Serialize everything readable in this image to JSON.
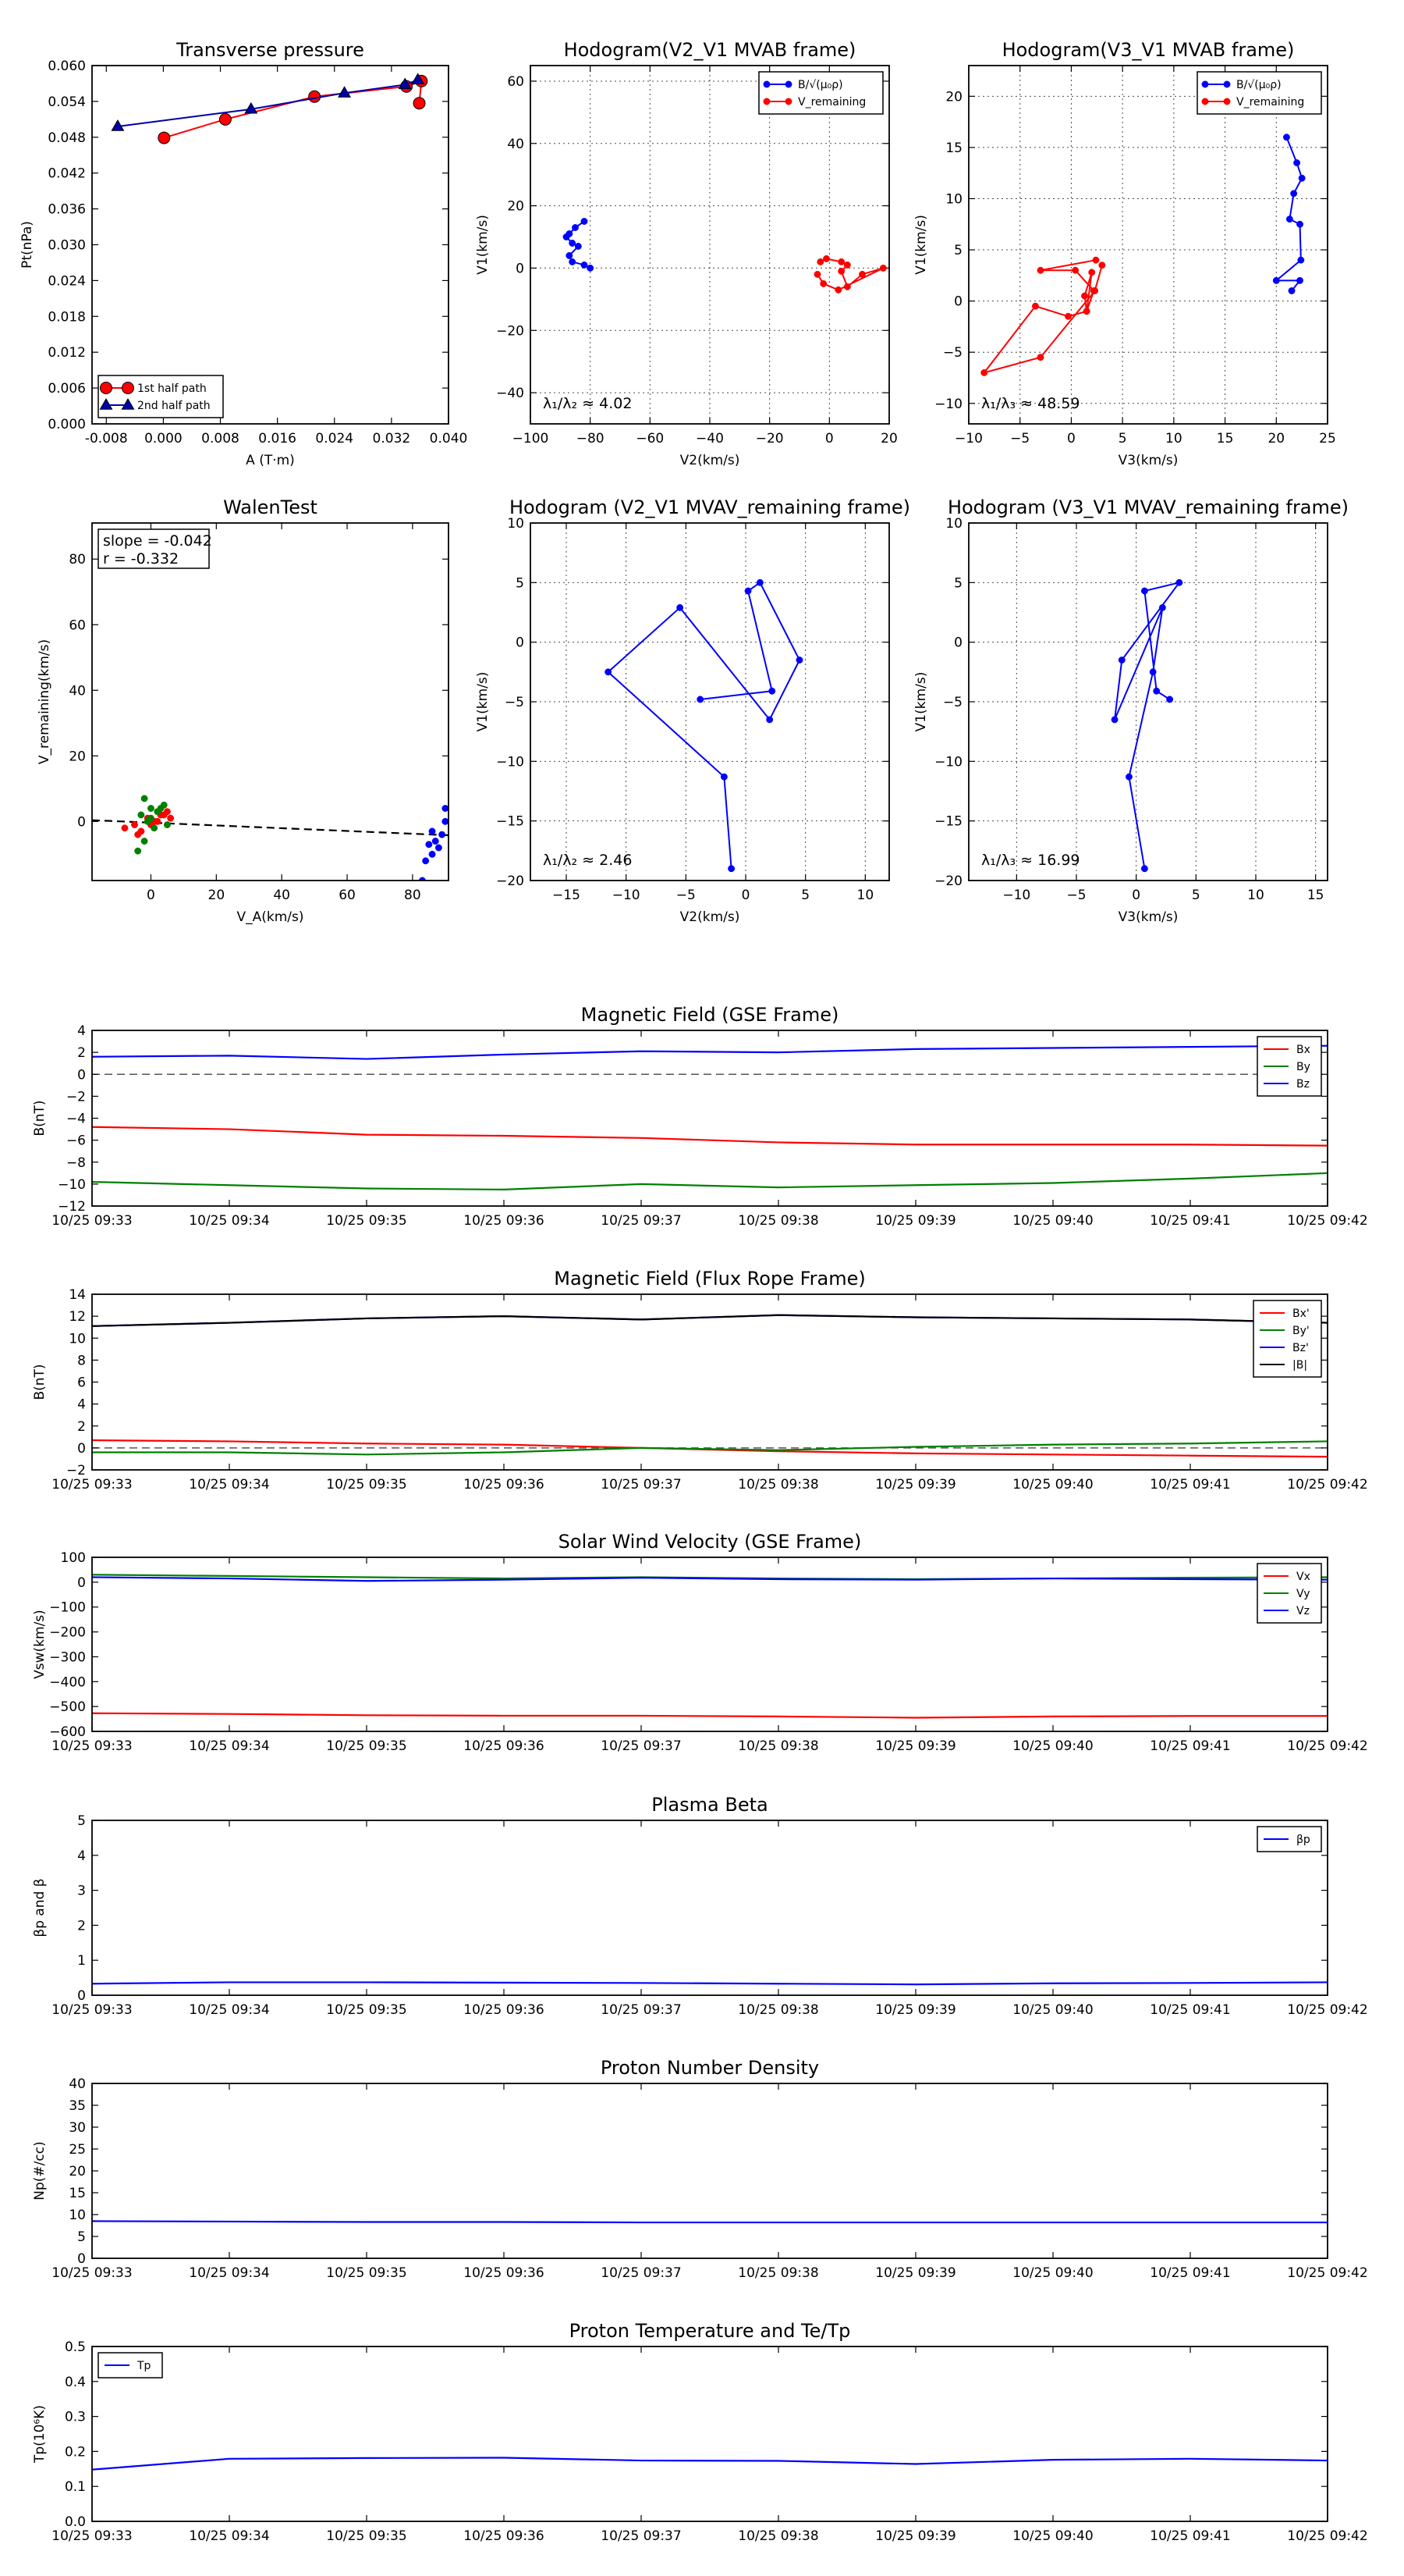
{
  "chart_data": [
    {
      "id": "transverse_pressure",
      "type": "scatter",
      "title": "Transverse pressure",
      "xlabel": "A (T·m)",
      "ylabel": "Pt(nPa)",
      "xlim": [
        -0.01,
        0.04
      ],
      "ylim": [
        0.0,
        0.06
      ],
      "xticks": [
        "-0.008",
        "0.000",
        "0.008",
        "0.016",
        "0.024",
        "0.032",
        "0.040"
      ],
      "yticks": [
        "0.000",
        "0.006",
        "0.012",
        "0.018",
        "0.024",
        "0.030",
        "0.036",
        "0.042",
        "0.048",
        "0.054",
        "0.060"
      ],
      "legend": "lower-left",
      "series": [
        {
          "name": "1st half path",
          "color": "#ff0000",
          "marker": "circle",
          "x": [
            0.0001,
            0.0087,
            0.0212,
            0.0341,
            0.0362,
            0.0359
          ],
          "y": [
            0.0479,
            0.051,
            0.0548,
            0.0565,
            0.0574,
            0.0537
          ]
        },
        {
          "name": "2nd half path",
          "color": "#0000aa",
          "marker": "triangle",
          "x": [
            -0.0064,
            0.0123,
            0.0254,
            0.0339,
            0.0357
          ],
          "y": [
            0.0498,
            0.0527,
            0.0554,
            0.0568,
            0.0576
          ]
        }
      ]
    },
    {
      "id": "hodogram_v2v1_mvab",
      "type": "line",
      "title": "Hodogram(V2_V1 MVAB frame)",
      "xlabel": "V2(km/s)",
      "ylabel": "V1(km/s)",
      "xlim": [
        -100,
        20
      ],
      "ylim": [
        -50,
        65
      ],
      "xticks": [
        "−100",
        "−80",
        "−60",
        "−40",
        "−20",
        "0",
        "20"
      ],
      "yticks": [
        "−40",
        "−20",
        "0",
        "20",
        "40",
        "60"
      ],
      "annotation": "λ₁/λ₂ ≈ 4.02",
      "legend": "top-right",
      "series": [
        {
          "name": "B/√(μ₀ρ)",
          "color": "#0000ff",
          "x": [
            -82,
            -85,
            -87,
            -88,
            -86,
            -84,
            -87,
            -86,
            -82,
            -80
          ],
          "y": [
            15,
            13,
            11,
            10,
            8,
            7,
            4,
            2,
            1,
            0
          ]
        },
        {
          "name": "V_remaining",
          "color": "#ff0000",
          "x": [
            -3,
            -1,
            4,
            6,
            4,
            6,
            11,
            18,
            3,
            -2,
            -4
          ],
          "y": [
            2,
            3,
            2,
            1,
            -1,
            -6,
            -2,
            0,
            -7,
            -5,
            -2
          ]
        }
      ]
    },
    {
      "id": "hodogram_v3v1_mvab",
      "type": "line",
      "title": "Hodogram(V3_V1 MVAB frame)",
      "xlabel": "V3(km/s)",
      "ylabel": "V1(km/s)",
      "xlim": [
        -10,
        25
      ],
      "ylim": [
        -12,
        23
      ],
      "xticks": [
        "−10",
        "−5",
        "0",
        "5",
        "10",
        "15",
        "20",
        "25"
      ],
      "yticks": [
        "−10",
        "−5",
        "0",
        "5",
        "10",
        "15",
        "20"
      ],
      "annotation": "λ₁/λ₃ ≈ 48.59",
      "legend": "top-right",
      "series": [
        {
          "name": "B/√(μ₀ρ)",
          "color": "#0000ff",
          "x": [
            21,
            22,
            22.5,
            21.7,
            21.3,
            22.3,
            22.4,
            20,
            22.3,
            21.5
          ],
          "y": [
            16,
            13.5,
            12,
            10.5,
            8,
            7.5,
            4,
            2,
            2,
            1
          ]
        },
        {
          "name": "V_remaining",
          "color": "#ff0000",
          "x": [
            2.4,
            -3,
            0.4,
            2.2,
            1.5,
            2,
            1.3,
            1.5,
            -0.3,
            -3.5,
            -8.5,
            -3,
            2.3,
            3
          ],
          "y": [
            4,
            3,
            3,
            1,
            -1,
            2.8,
            0.5,
            -1,
            -1.5,
            -0.5,
            -7,
            -5.5,
            1,
            3.5
          ]
        }
      ]
    },
    {
      "id": "walen_test",
      "type": "scatter",
      "title": "WalenTest",
      "xlabel": "V_A(km/s)",
      "ylabel": "V_remaining(km/s)",
      "xlim": [
        -18,
        91
      ],
      "ylim": [
        -18,
        91
      ],
      "xticks": [
        "0",
        "20",
        "40",
        "60",
        "80"
      ],
      "yticks": [
        "0",
        "20",
        "40",
        "60",
        "80"
      ],
      "annotation": [
        "slope = -0.042",
        "r = -0.332"
      ],
      "series": [
        {
          "name": "",
          "color": "#ff0000",
          "x": [
            -8,
            -5,
            -3,
            -1,
            1,
            3,
            5,
            -4,
            2,
            6,
            4,
            0
          ],
          "y": [
            -2,
            -1,
            -3,
            1,
            0,
            2,
            3,
            -4,
            0,
            1,
            2,
            -1
          ]
        },
        {
          "name": "",
          "color": "#008000",
          "x": [
            -2,
            0,
            2,
            4,
            -3,
            -1,
            1,
            3,
            5,
            -4,
            -2,
            0
          ],
          "y": [
            7,
            4,
            3,
            5,
            2,
            0,
            -2,
            4,
            -1,
            -9,
            -6,
            1
          ]
        },
        {
          "name": "",
          "color": "#0000ff",
          "x": [
            83,
            86,
            87,
            88,
            89,
            90,
            85,
            84,
            86,
            90
          ],
          "y": [
            -18,
            -10,
            -6,
            -8,
            -4,
            4,
            -7,
            -12,
            -3,
            0
          ]
        }
      ],
      "fit_line": {
        "color": "#000000",
        "style": "dashed",
        "x": [
          -18,
          91
        ],
        "y": [
          0.4,
          -4.2
        ]
      }
    },
    {
      "id": "hodogram_v2v1_mvav",
      "type": "line",
      "title": "Hodogram (V2_V1 MVAV_remaining frame)",
      "xlabel": "V2(km/s)",
      "ylabel": "V1(km/s)",
      "xlim": [
        -18,
        12
      ],
      "ylim": [
        -20,
        10
      ],
      "xticks": [
        "−15",
        "−10",
        "−5",
        "0",
        "5",
        "10"
      ],
      "yticks": [
        "−20",
        "−15",
        "−10",
        "−5",
        "0",
        "5",
        "10"
      ],
      "annotation": "λ₁/λ₂ ≈ 2.46",
      "series": [
        {
          "name": "",
          "color": "#0000ff",
          "x": [
            -1.2,
            -1.8,
            -11.5,
            -5.5,
            2,
            4.5,
            1.2,
            0.2,
            2.2,
            -3.8
          ],
          "y": [
            -19,
            -11.3,
            -2.5,
            2.9,
            -6.5,
            -1.5,
            5,
            4.3,
            -4.1,
            -4.8
          ]
        }
      ]
    },
    {
      "id": "hodogram_v3v1_mvav",
      "type": "line",
      "title": "Hodogram (V3_V1 MVAV_remaining frame)",
      "xlabel": "V3(km/s)",
      "ylabel": "V1(km/s)",
      "xlim": [
        -14,
        16
      ],
      "ylim": [
        -20,
        10
      ],
      "xticks": [
        "−10",
        "−5",
        "0",
        "5",
        "10",
        "15"
      ],
      "yticks": [
        "−20",
        "−15",
        "−10",
        "−5",
        "0",
        "5",
        "10"
      ],
      "annotation": "λ₁/λ₃ ≈ 16.99",
      "series": [
        {
          "name": "",
          "color": "#0000ff",
          "x": [
            0.7,
            -0.6,
            1.4,
            2.2,
            -1.8,
            -1.2,
            3.6,
            0.7,
            1.7,
            2.8
          ],
          "y": [
            -19,
            -11.3,
            -2.5,
            2.9,
            -6.5,
            -1.5,
            5,
            4.3,
            -4.1,
            -4.8
          ]
        }
      ]
    },
    {
      "id": "magnetic_field_gse",
      "type": "line",
      "title": "Magnetic Field (GSE Frame)",
      "xlabel": "",
      "ylabel": "B(nT)",
      "xticks": [
        "10/25 09:33",
        "10/25 09:34",
        "10/25 09:35",
        "10/25 09:36",
        "10/25 09:37",
        "10/25 09:38",
        "10/25 09:39",
        "10/25 09:40",
        "10/25 09:41",
        "10/25 09:42"
      ],
      "ylim": [
        -12,
        4
      ],
      "yticks": [
        "−12",
        "−10",
        "−8",
        "−6",
        "−4",
        "−2",
        "0",
        "2",
        "4"
      ],
      "zero_line": true,
      "legend": "top-right",
      "series": [
        {
          "name": "Bx",
          "color": "#ff0000",
          "values": [
            -4.8,
            -5.0,
            -5.5,
            -5.6,
            -5.8,
            -6.2,
            -6.4,
            -6.4,
            -6.4,
            -6.5
          ]
        },
        {
          "name": "By",
          "color": "#008000",
          "values": [
            -9.8,
            -10.1,
            -10.4,
            -10.5,
            -10.0,
            -10.3,
            -10.1,
            -9.9,
            -9.5,
            -9.0
          ]
        },
        {
          "name": "Bz",
          "color": "#0000ff",
          "values": [
            1.6,
            1.7,
            1.4,
            1.8,
            2.1,
            2.0,
            2.3,
            2.4,
            2.5,
            2.6
          ]
        }
      ]
    },
    {
      "id": "magnetic_field_flux_rope",
      "type": "line",
      "title": "Magnetic Field (Flux Rope Frame)",
      "xlabel": "",
      "ylabel": "B(nT)",
      "xticks": [
        "10/25 09:33",
        "10/25 09:34",
        "10/25 09:35",
        "10/25 09:36",
        "10/25 09:37",
        "10/25 09:38",
        "10/25 09:39",
        "10/25 09:40",
        "10/25 09:41",
        "10/25 09:42"
      ],
      "ylim": [
        -2,
        14
      ],
      "yticks": [
        "−2",
        "0",
        "2",
        "4",
        "6",
        "8",
        "10",
        "12",
        "14"
      ],
      "zero_line": true,
      "legend": "top-right",
      "series": [
        {
          "name": "Bx'",
          "color": "#ff0000",
          "values": [
            0.7,
            0.6,
            0.4,
            0.3,
            0.0,
            -0.3,
            -0.5,
            -0.6,
            -0.7,
            -0.8
          ]
        },
        {
          "name": "By'",
          "color": "#008000",
          "values": [
            -0.4,
            -0.4,
            -0.6,
            -0.4,
            0.0,
            -0.2,
            0.1,
            0.3,
            0.4,
            0.6
          ]
        },
        {
          "name": "Bz'",
          "color": "#0000ff",
          "values": [
            11.1,
            11.4,
            11.8,
            12.0,
            11.7,
            12.1,
            11.9,
            11.8,
            11.7,
            11.4
          ]
        },
        {
          "name": "|B|",
          "color": "#000000",
          "values": [
            11.1,
            11.4,
            11.8,
            12.0,
            11.7,
            12.1,
            11.9,
            11.8,
            11.7,
            11.4
          ]
        }
      ]
    },
    {
      "id": "solar_wind_velocity",
      "type": "line",
      "title": "Solar Wind Velocity (GSE Frame)",
      "xlabel": "",
      "ylabel": "Vsw(km/s)",
      "xticks": [
        "10/25 09:33",
        "10/25 09:34",
        "10/25 09:35",
        "10/25 09:36",
        "10/25 09:37",
        "10/25 09:38",
        "10/25 09:39",
        "10/25 09:40",
        "10/25 09:41",
        "10/25 09:42"
      ],
      "ylim": [
        -600,
        100
      ],
      "yticks": [
        "−600",
        "−500",
        "−400",
        "−300",
        "−200",
        "−100",
        "0",
        "100"
      ],
      "legend": "top-right",
      "series": [
        {
          "name": "Vx",
          "color": "#ff0000",
          "values": [
            -527,
            -530,
            -535,
            -537,
            -537,
            -540,
            -545,
            -540,
            -538,
            -538
          ]
        },
        {
          "name": "Vy",
          "color": "#008000",
          "values": [
            30,
            25,
            20,
            15,
            20,
            15,
            12,
            15,
            18,
            20
          ]
        },
        {
          "name": "Vz",
          "color": "#0000ff",
          "values": [
            20,
            15,
            5,
            10,
            18,
            12,
            10,
            15,
            12,
            10
          ]
        }
      ]
    },
    {
      "id": "plasma_beta",
      "type": "line",
      "title": "Plasma Beta",
      "xlabel": "",
      "ylabel": "βp and β",
      "xticks": [
        "10/25 09:33",
        "10/25 09:34",
        "10/25 09:35",
        "10/25 09:36",
        "10/25 09:37",
        "10/25 09:38",
        "10/25 09:39",
        "10/25 09:40",
        "10/25 09:41",
        "10/25 09:42"
      ],
      "ylim": [
        0,
        5
      ],
      "yticks": [
        "0",
        "1",
        "2",
        "3",
        "4",
        "5"
      ],
      "legend": "top-right",
      "series": [
        {
          "name": "βp",
          "color": "#0000ff",
          "values": [
            0.33,
            0.37,
            0.37,
            0.36,
            0.35,
            0.33,
            0.31,
            0.34,
            0.35,
            0.37
          ]
        }
      ]
    },
    {
      "id": "proton_number_density",
      "type": "line",
      "title": "Proton Number Density",
      "xlabel": "",
      "ylabel": "Np(#/cc)",
      "xticks": [
        "10/25 09:33",
        "10/25 09:34",
        "10/25 09:35",
        "10/25 09:36",
        "10/25 09:37",
        "10/25 09:38",
        "10/25 09:39",
        "10/25 09:40",
        "10/25 09:41",
        "10/25 09:42"
      ],
      "ylim": [
        0,
        40
      ],
      "yticks": [
        "0",
        "5",
        "10",
        "15",
        "20",
        "25",
        "30",
        "35",
        "40"
      ],
      "series": [
        {
          "name": "",
          "color": "#0000ff",
          "values": [
            8.5,
            8.4,
            8.3,
            8.3,
            8.2,
            8.2,
            8.2,
            8.2,
            8.2,
            8.2
          ]
        }
      ]
    },
    {
      "id": "proton_temperature",
      "type": "line",
      "title": "Proton Temperature and Te/Tp",
      "xlabel": "",
      "ylabel": "Tp(10⁶K)",
      "xticks": [
        "10/25 09:33",
        "10/25 09:34",
        "10/25 09:35",
        "10/25 09:36",
        "10/25 09:37",
        "10/25 09:38",
        "10/25 09:39",
        "10/25 09:40",
        "10/25 09:41",
        "10/25 09:42"
      ],
      "ylim": [
        0,
        0.5
      ],
      "yticks": [
        "0.0",
        "0.1",
        "0.2",
        "0.3",
        "0.4",
        "0.5"
      ],
      "legend": "top-left",
      "series": [
        {
          "name": "Tp",
          "color": "#0000ff",
          "values": [
            0.148,
            0.179,
            0.181,
            0.182,
            0.174,
            0.173,
            0.164,
            0.176,
            0.179,
            0.174
          ]
        }
      ]
    }
  ]
}
